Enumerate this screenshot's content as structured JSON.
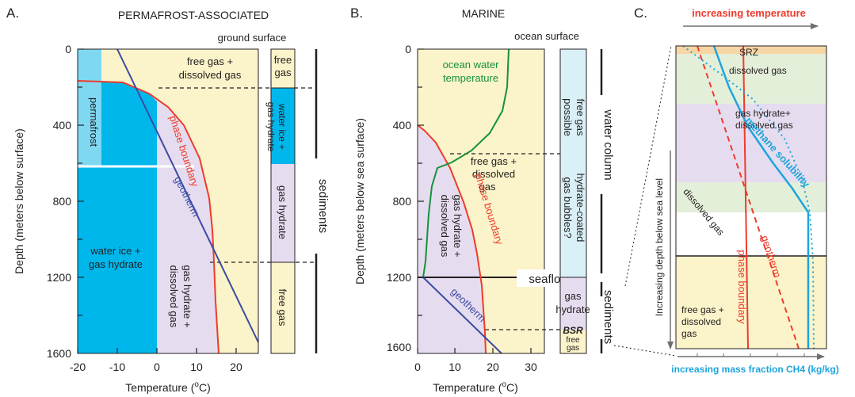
{
  "colors": {
    "ice": "#00b7eb",
    "ice_light": "#7fd8f2",
    "free_gas": "#fbf3c9",
    "hydrate": "#e6dcef",
    "bubbles": "#d9f0f6",
    "green_band": "#e4efd9",
    "srz": "#f7d6a5",
    "phase_boundary": "#ef3b2c",
    "geotherm": "#3b4ba3",
    "ocean_temp": "#14923d",
    "methane_solubility": "#1ea5dc",
    "temperature_arrow": "#ef3b2c"
  },
  "panelA": {
    "letter": "A.",
    "title": "PERMAFROST-ASSOCIATED",
    "ground_surface": "ground surface",
    "y_label": "Depth (meters below surface)",
    "x_label": "Temperature (",
    "x_label_sup": "o",
    "x_label_end": "C)",
    "y_ticks": [
      "0",
      "400",
      "800",
      "1200",
      "1600"
    ],
    "x_ticks": [
      "-20",
      "-10",
      "0",
      "10",
      "20"
    ],
    "zones": {
      "free_gas_dissolved_1": "free gas +",
      "free_gas_dissolved_2": "dissolved gas",
      "permafrost": "permafrost",
      "water_ice_1": "water ice +",
      "water_ice_2": "gas hydrate",
      "hydrate_1": "gas hydrate +",
      "hydrate_2": "dissolved gas",
      "phase_boundary": "phase boundary",
      "geotherm": "geotherm"
    },
    "column": {
      "free_gas": "free gas",
      "water_ice_1": "water ice +",
      "water_ice_2": "gas hydrate",
      "gas_hydrate": "gas hydrate",
      "free_gas_bottom": "free gas"
    },
    "sediments": "sediments"
  },
  "panelB": {
    "letter": "B.",
    "title": "MARINE",
    "ocean_surface": "ocean surface",
    "y_label": "Depth (meters below sea surface)",
    "x_label": "Temperature (",
    "x_label_sup": "o",
    "x_label_end": "C)",
    "y_ticks": [
      "0",
      "400",
      "800",
      "1200",
      "1600"
    ],
    "x_ticks": [
      "0",
      "10",
      "20",
      "30"
    ],
    "zones": {
      "ocean_water_1": "ocean water",
      "ocean_water_2": "temperature",
      "free_gas_1": "free gas +",
      "free_gas_2": "dissolved",
      "free_gas_3": "gas",
      "hydrate_1": "gas hydrate +",
      "hydrate_2": "dissolved gas",
      "phase_boundary": "phase boundary",
      "geotherm": "geotherm",
      "seafloor": "seafloor"
    },
    "column": {
      "free_gas_1": "free gas",
      "free_gas_2": "possible",
      "bubbles_1": "hydrate-coated",
      "bubbles_2": "gas bubbles?",
      "gas_1": "gas",
      "gas_2": "hydrate",
      "bsr": "BSR",
      "free_1": "free",
      "free_2": "gas"
    },
    "water_column": "water column",
    "sediments": "sediments"
  },
  "panelC": {
    "letter": "C.",
    "top_arrow": "increasing temperature",
    "bottom_arrow": "increasing mass fraction CH4 (kg/kg)",
    "y_arrow": "Increasing depth below sea level",
    "zones": {
      "srz": "SRZ",
      "dissolved_top": "dissolved gas",
      "hydrate_1": "gas hydrate+",
      "hydrate_2": "dissolved gas",
      "dissolved_mid": "dissolved gas",
      "free_gas_1": "free gas +",
      "free_gas_2": "dissolved",
      "free_gas_3": "gas",
      "methane_solubility": "methane solubility",
      "geotherm": "geotherm",
      "phase_boundary": "phase boundary"
    }
  }
}
